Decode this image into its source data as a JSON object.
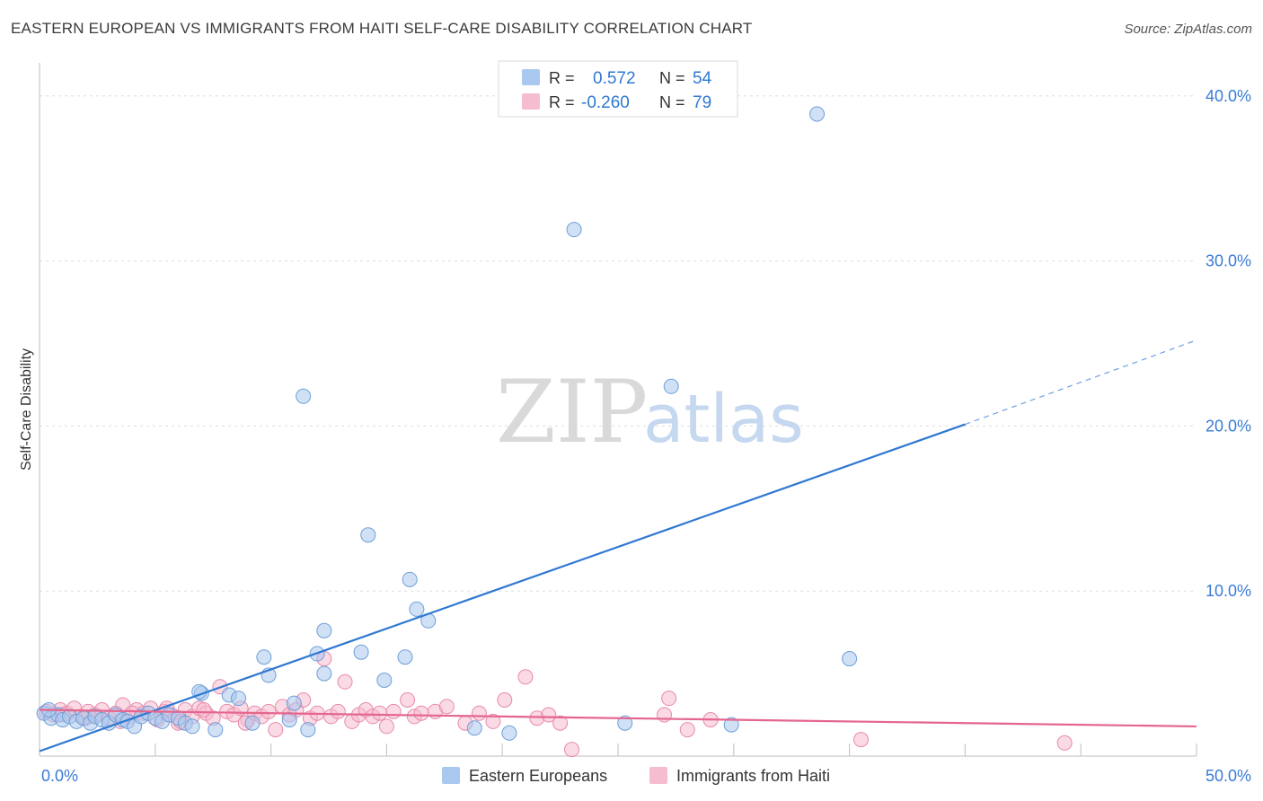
{
  "title": "EASTERN EUROPEAN VS IMMIGRANTS FROM HAITI SELF-CARE DISABILITY CORRELATION CHART",
  "source": "Source: ZipAtlas.com",
  "watermark": {
    "zip": "ZIP",
    "atlas": "atlas"
  },
  "legend_box": {
    "rows": [
      {
        "r_label": "R =",
        "r_value": "0.572",
        "n_label": "N =",
        "n_value": "54",
        "color": "#a9c8ef",
        "border": "#6f9fd8"
      },
      {
        "r_label": "R =",
        "r_value": "-0.260",
        "n_label": "N =",
        "n_value": "79",
        "color": "#f6bccf",
        "border": "#e88aaa"
      }
    ]
  },
  "chart_data": {
    "type": "scatter",
    "title": "EASTERN EUROPEAN VS IMMIGRANTS FROM HAITI SELF-CARE DISABILITY CORRELATION CHART",
    "xlabel": "",
    "ylabel": "Self-Care Disability",
    "xlim": [
      0,
      50
    ],
    "ylim": [
      0,
      42
    ],
    "x_tick_labels": [
      "0.0%",
      "50.0%"
    ],
    "y_ticks": [
      10,
      20,
      30,
      40
    ],
    "y_tick_labels": [
      "10.0%",
      "20.0%",
      "30.0%",
      "40.0%"
    ],
    "grid": true,
    "legend": [
      "Eastern Europeans",
      "Immigrants from Haiti"
    ],
    "series": [
      {
        "name": "Eastern Europeans",
        "color": "#a9c8ef",
        "stroke": "#6f9fd8",
        "trend_color": "#2f78d2",
        "trend": {
          "x0": 0,
          "y0": 0.3,
          "x1": 40.0,
          "y1": 20.1,
          "dash_to_x": 50,
          "dash_to_y": 25.2
        },
        "points": [
          [
            0.2,
            2.6
          ],
          [
            0.5,
            2.3
          ],
          [
            0.8,
            2.5
          ],
          [
            1.0,
            2.2
          ],
          [
            1.3,
            2.4
          ],
          [
            1.6,
            2.1
          ],
          [
            1.9,
            2.3
          ],
          [
            2.2,
            2.0
          ],
          [
            2.4,
            2.4
          ],
          [
            2.7,
            2.2
          ],
          [
            3.0,
            2.0
          ],
          [
            3.3,
            2.5
          ],
          [
            3.6,
            2.2
          ],
          [
            3.8,
            2.1
          ],
          [
            4.1,
            1.8
          ],
          [
            4.4,
            2.4
          ],
          [
            4.7,
            2.6
          ],
          [
            5.0,
            2.3
          ],
          [
            5.3,
            2.1
          ],
          [
            5.6,
            2.5
          ],
          [
            6.0,
            2.3
          ],
          [
            6.3,
            2.0
          ],
          [
            6.6,
            1.8
          ],
          [
            7.0,
            3.8
          ],
          [
            7.6,
            1.6
          ],
          [
            8.2,
            3.7
          ],
          [
            8.6,
            3.5
          ],
          [
            9.2,
            2.0
          ],
          [
            9.7,
            6.0
          ],
          [
            9.9,
            4.9
          ],
          [
            10.8,
            2.2
          ],
          [
            11.0,
            3.2
          ],
          [
            11.6,
            1.6
          ],
          [
            11.4,
            21.8
          ],
          [
            12.0,
            6.2
          ],
          [
            12.3,
            7.6
          ],
          [
            12.3,
            5.0
          ],
          [
            13.9,
            6.3
          ],
          [
            14.2,
            13.4
          ],
          [
            14.9,
            4.6
          ],
          [
            15.8,
            6.0
          ],
          [
            16.0,
            10.7
          ],
          [
            16.3,
            8.9
          ],
          [
            16.8,
            8.2
          ],
          [
            18.8,
            1.7
          ],
          [
            20.3,
            1.4
          ],
          [
            23.1,
            31.9
          ],
          [
            25.3,
            2.0
          ],
          [
            27.3,
            22.4
          ],
          [
            29.9,
            1.9
          ],
          [
            33.6,
            38.9
          ],
          [
            35.0,
            5.9
          ],
          [
            0.4,
            2.8
          ],
          [
            6.9,
            3.9
          ]
        ]
      },
      {
        "name": "Immigrants from Haiti",
        "color": "#f6bccf",
        "stroke": "#e88aaa",
        "trend_color": "#e4668f",
        "trend": {
          "x0": 0,
          "y0": 2.8,
          "x1": 50,
          "y1": 1.8
        },
        "points": [
          [
            0.3,
            2.7
          ],
          [
            0.6,
            2.5
          ],
          [
            0.9,
            2.8
          ],
          [
            1.2,
            2.6
          ],
          [
            1.5,
            2.9
          ],
          [
            1.8,
            2.4
          ],
          [
            2.1,
            2.7
          ],
          [
            2.4,
            2.5
          ],
          [
            2.7,
            2.8
          ],
          [
            3.0,
            2.3
          ],
          [
            3.3,
            2.6
          ],
          [
            3.6,
            3.1
          ],
          [
            3.9,
            2.4
          ],
          [
            4.2,
            2.8
          ],
          [
            4.5,
            2.6
          ],
          [
            4.8,
            2.9
          ],
          [
            5.1,
            2.2
          ],
          [
            5.4,
            2.7
          ],
          [
            5.7,
            2.5
          ],
          [
            6.0,
            2.0
          ],
          [
            6.3,
            2.8
          ],
          [
            6.6,
            2.4
          ],
          [
            6.9,
            2.9
          ],
          [
            7.2,
            2.6
          ],
          [
            7.5,
            2.3
          ],
          [
            7.8,
            4.2
          ],
          [
            8.1,
            2.7
          ],
          [
            8.4,
            2.5
          ],
          [
            8.7,
            2.9
          ],
          [
            9.0,
            2.2
          ],
          [
            9.3,
            2.6
          ],
          [
            9.6,
            2.4
          ],
          [
            9.9,
            2.7
          ],
          [
            10.2,
            1.6
          ],
          [
            10.5,
            3.0
          ],
          [
            10.8,
            2.5
          ],
          [
            11.1,
            2.8
          ],
          [
            11.4,
            3.4
          ],
          [
            11.7,
            2.3
          ],
          [
            12.0,
            2.6
          ],
          [
            12.3,
            5.9
          ],
          [
            12.6,
            2.4
          ],
          [
            12.9,
            2.7
          ],
          [
            13.2,
            4.5
          ],
          [
            13.5,
            2.1
          ],
          [
            13.8,
            2.5
          ],
          [
            14.1,
            2.8
          ],
          [
            14.4,
            2.4
          ],
          [
            14.7,
            2.6
          ],
          [
            15.0,
            1.8
          ],
          [
            15.3,
            2.7
          ],
          [
            15.9,
            3.4
          ],
          [
            16.2,
            2.4
          ],
          [
            16.5,
            2.6
          ],
          [
            17.1,
            2.7
          ],
          [
            17.6,
            3.0
          ],
          [
            18.4,
            2.0
          ],
          [
            19.0,
            2.6
          ],
          [
            19.6,
            2.1
          ],
          [
            20.1,
            3.4
          ],
          [
            21.0,
            4.8
          ],
          [
            21.5,
            2.3
          ],
          [
            22.0,
            2.5
          ],
          [
            22.5,
            2.0
          ],
          [
            23.0,
            0.4
          ],
          [
            27.0,
            2.5
          ],
          [
            27.2,
            3.5
          ],
          [
            28.0,
            1.6
          ],
          [
            29.0,
            2.2
          ],
          [
            35.5,
            1.0
          ],
          [
            44.3,
            0.8
          ],
          [
            1.0,
            2.5
          ],
          [
            2.0,
            2.3
          ],
          [
            3.5,
            2.1
          ],
          [
            4.0,
            2.6
          ],
          [
            5.5,
            2.9
          ],
          [
            6.1,
            2.1
          ],
          [
            7.1,
            2.8
          ],
          [
            8.9,
            2.0
          ]
        ]
      }
    ]
  }
}
